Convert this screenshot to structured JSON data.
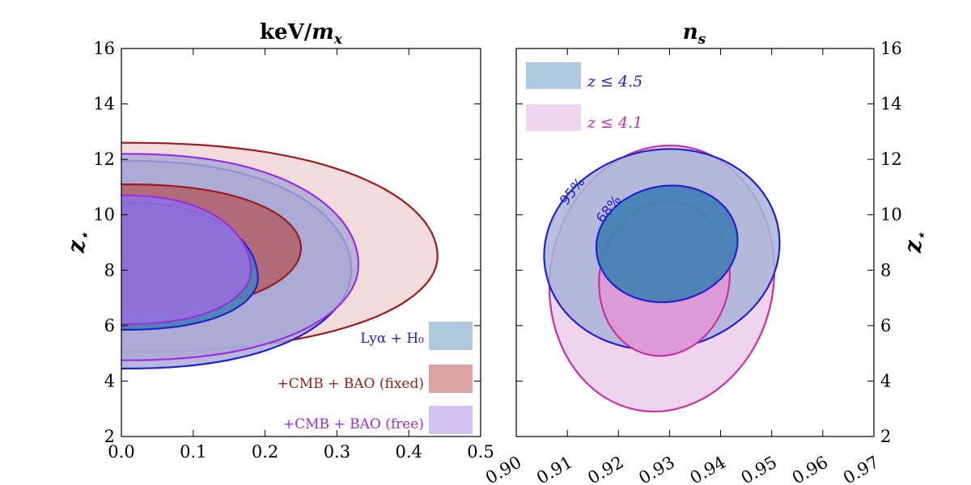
{
  "chart_data": [
    {
      "type": "contour",
      "title": "keV/m_x",
      "xlabel": "",
      "ylabel": "z⋆",
      "xlim": [
        0.0,
        0.5
      ],
      "ylim": [
        2,
        16
      ],
      "xticks": [
        "0.0",
        "0.1",
        "0.2",
        "0.3",
        "0.4",
        "0.5"
      ],
      "yticks": [
        "2",
        "4",
        "6",
        "8",
        "10",
        "12",
        "14",
        "16"
      ],
      "series": [
        {
          "name": "+CMB + BAO (fixed)",
          "color": "#9b1c1c",
          "fill95": "#f5dcdc",
          "fill68": "#b0636e",
          "levels": [
            {
              "level": "95%",
              "x_max": 0.44,
              "y_peak": 8.5,
              "y_min": 5.05,
              "y_max": 12.6
            },
            {
              "level": "68%",
              "x_max": 0.25,
              "y_peak": 8.8,
              "y_min": 6.5,
              "y_max": 11.1
            }
          ]
        },
        {
          "name": "Lyα + H0",
          "color": "#2222cc",
          "fill95": "#a9a9d6",
          "fill68": "#4682b4",
          "levels": [
            {
              "level": "95%",
              "x_max": 0.32,
              "y_peak": 8.0,
              "y_min": 4.45,
              "y_max": 11.95
            },
            {
              "level": "68%",
              "x_max": 0.19,
              "y_peak": 7.7,
              "y_min": 5.85,
              "y_max": 10.45
            }
          ]
        },
        {
          "name": "+CMB + BAO (free)",
          "color": "#9a2ee0",
          "fill95": "#a9a9d6",
          "fill68": "#9370db",
          "levels": [
            {
              "level": "95%",
              "x_max": 0.33,
              "y_peak": 8.2,
              "y_min": 4.75,
              "y_max": 12.2
            },
            {
              "level": "68%",
              "x_max": 0.18,
              "y_peak": 8.0,
              "y_min": 6.05,
              "y_max": 10.7
            }
          ]
        }
      ],
      "legend": [
        {
          "label": "Lyα + H₀",
          "color": "#2222cc",
          "swatch": "#b0c8e0"
        },
        {
          "label": "+CMB + BAO (fixed)",
          "color": "#9b1c1c",
          "swatch": "#dba3a3"
        },
        {
          "label": "+CMB + BAO (free)",
          "color": "#9a2ee0",
          "swatch": "#d3c2ef"
        }
      ],
      "legend_position": "lower-right"
    },
    {
      "type": "contour",
      "title": "n_s",
      "xlabel": "",
      "ylabel": "z⋆",
      "xlim": [
        0.9,
        0.97
      ],
      "ylim": [
        2,
        16
      ],
      "xticks": [
        "0.90",
        "0.91",
        "0.92",
        "0.93",
        "0.94",
        "0.95",
        "0.96",
        "0.97"
      ],
      "yticks": [
        "2",
        "4",
        "6",
        "8",
        "10",
        "12",
        "14",
        "16"
      ],
      "series": [
        {
          "name": "z ≤ 4.1",
          "color": "#c832a0",
          "fill95": "#f0d4ee",
          "fill68": "#dc9bd6",
          "levels": [
            {
              "level": "95%",
              "x_center": 0.9285,
              "y_center": 7.7,
              "x_halfwidth": 0.0215,
              "y_halfheight": 4.9
            },
            {
              "level": "68%",
              "x_center": 0.929,
              "y_center": 7.7,
              "x_halfwidth": 0.0125,
              "y_halfheight": 2.85
            }
          ]
        },
        {
          "name": "z ≤ 4.5",
          "color": "#2222cc",
          "fill95": "#a9b4d8",
          "fill68": "#4682b4",
          "levels": [
            {
              "level": "95%",
              "x_center": 0.9285,
              "y_center": 8.75,
              "x_halfwidth": 0.0225,
              "y_halfheight": 3.7
            },
            {
              "level": "68%",
              "x_center": 0.9295,
              "y_center": 8.95,
              "x_halfwidth": 0.0135,
              "y_halfheight": 2.15
            }
          ]
        }
      ],
      "contour_labels": [
        "95%",
        "68%"
      ],
      "legend": [
        {
          "label": "z ≤ 4.5",
          "color": "#2222cc",
          "swatch": "#b0c8e0"
        },
        {
          "label": "z ≤ 4.1",
          "color": "#c832a0",
          "swatch": "#f0d4ee"
        }
      ],
      "legend_position": "top-left"
    }
  ]
}
